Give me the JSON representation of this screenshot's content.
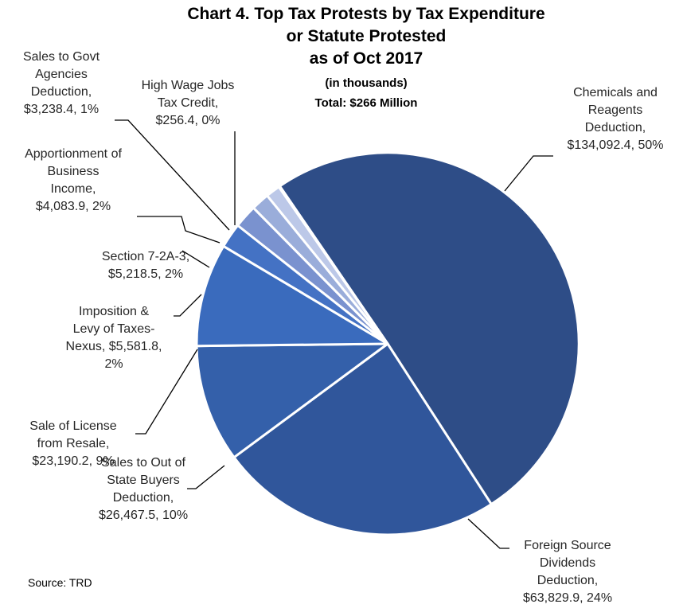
{
  "chart_data": {
    "type": "pie",
    "title_lines": [
      "Chart 4. Top Tax Protests by Tax Expenditure",
      "or Statute Protested",
      "as of Oct 2017"
    ],
    "subtitle_lines": [
      "(in thousands)",
      "Total: $266 Million"
    ],
    "source": "Source: TRD",
    "slices": [
      {
        "name": "Chemicals and Reagents Deduction",
        "value": 134092.4,
        "percent": 50,
        "color": "#2e4d87",
        "label_lines": [
          "Chemicals and",
          "Reagents",
          "Deduction,",
          "$134,092.4, 50%"
        ]
      },
      {
        "name": "Foreign Source Dividends Deduction",
        "value": 63829.9,
        "percent": 24,
        "color": "#30569b",
        "label_lines": [
          "Foreign Source",
          "Dividends",
          "Deduction,",
          "$63,829.9, 24%"
        ]
      },
      {
        "name": "Sales to Out of State Buyers Deduction",
        "value": 26467.5,
        "percent": 10,
        "color": "#3460aa",
        "label_lines": [
          "Sales to Out of",
          "State Buyers",
          "Deduction,",
          "$26,467.5, 10%"
        ]
      },
      {
        "name": "Sale of License from Resale",
        "value": 23190.2,
        "percent": 9,
        "color": "#3a6bbd",
        "label_lines": [
          "Sale of License",
          "from Resale,",
          "$23,190.2, 9%"
        ]
      },
      {
        "name": "Imposition & Levy of Taxes-Nexus",
        "value": 5581.8,
        "percent": 2,
        "color": "#4472c4",
        "label_lines": [
          "Imposition &",
          "Levy of Taxes-",
          "Nexus, $5,581.8,",
          "2%"
        ]
      },
      {
        "name": "Section 7-2A-3",
        "value": 5218.5,
        "percent": 2,
        "color": "#7a92cf",
        "label_lines": [
          "Section 7-2A-3,",
          "$5,218.5, 2%"
        ]
      },
      {
        "name": "Apportionment of Business Income",
        "value": 4083.9,
        "percent": 2,
        "color": "#9aadda",
        "label_lines": [
          "Apportionment of",
          "Business",
          "Income,",
          "$4,083.9, 2%"
        ]
      },
      {
        "name": "Sales to Govt Agencies Deduction",
        "value": 3238.4,
        "percent": 1,
        "color": "#bcc8e8",
        "label_lines": [
          "Sales to Govt",
          "Agencies",
          "Deduction,",
          "$3,238.4, 1%"
        ]
      },
      {
        "name": "High Wage Jobs Tax Credit",
        "value": 256.4,
        "percent": 0,
        "color": "#d9e0f2",
        "label_lines": [
          "High Wage Jobs",
          "Tax Credit,",
          "$256.4, 0%"
        ]
      }
    ]
  }
}
